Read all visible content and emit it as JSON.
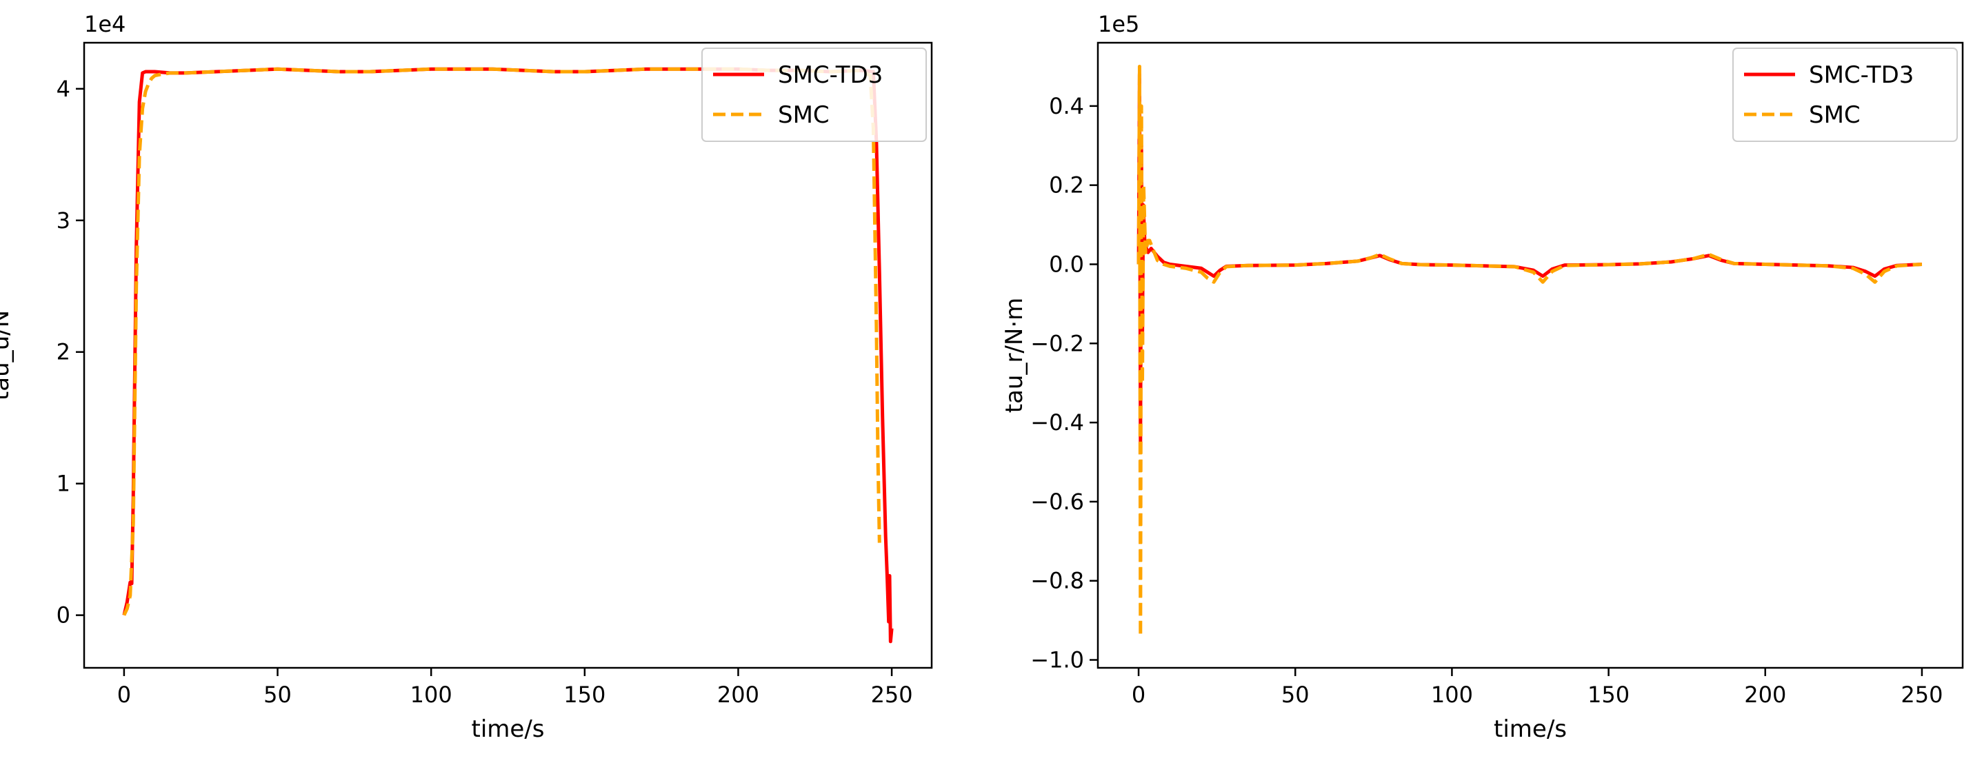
{
  "chart_data": [
    {
      "type": "line",
      "title": "",
      "xlabel": "time/s",
      "ylabel": "tau_u/N",
      "y_offset_label": "1e4",
      "xlim": [
        -13,
        263
      ],
      "ylim": [
        -0.4,
        4.35
      ],
      "xticks": [
        0,
        50,
        100,
        150,
        200,
        250
      ],
      "yticks": [
        0,
        1,
        2,
        3,
        4
      ],
      "xtick_labels": [
        "0",
        "50",
        "100",
        "150",
        "200",
        "250"
      ],
      "ytick_labels": [
        "0",
        "1",
        "2",
        "3",
        "4"
      ],
      "legend": "top-right",
      "series": [
        {
          "name": "SMC-TD3",
          "color": "#ff0000",
          "style": "solid",
          "x": [
            0,
            1,
            2,
            2.5,
            3,
            4,
            5,
            6,
            7,
            8,
            10,
            15,
            20,
            30,
            40,
            50,
            60,
            70,
            80,
            90,
            100,
            110,
            120,
            130,
            140,
            150,
            160,
            170,
            180,
            190,
            200,
            210,
            220,
            230,
            240,
            244,
            245,
            246,
            247,
            248,
            248.5,
            249,
            249.3,
            249.6,
            250
          ],
          "y": [
            0,
            0.1,
            0.25,
            0.24,
            0.9,
            2.8,
            3.9,
            4.12,
            4.13,
            4.13,
            4.13,
            4.12,
            4.12,
            4.13,
            4.14,
            4.15,
            4.14,
            4.13,
            4.13,
            4.14,
            4.15,
            4.15,
            4.15,
            4.14,
            4.13,
            4.13,
            4.14,
            4.15,
            4.15,
            4.15,
            4.15,
            4.14,
            4.14,
            4.13,
            4.14,
            4.13,
            3.6,
            2.6,
            1.5,
            0.6,
            0.3,
            -0.05,
            0.3,
            -0.2,
            -0.1
          ]
        },
        {
          "name": "SMC",
          "color": "#ffa500",
          "style": "dashed",
          "x": [
            0,
            1,
            2,
            3,
            4,
            5,
            6,
            7,
            8,
            9,
            10,
            12,
            15,
            20,
            30,
            40,
            50,
            60,
            70,
            80,
            90,
            100,
            110,
            120,
            130,
            140,
            150,
            160,
            170,
            180,
            190,
            200,
            210,
            220,
            230,
            240,
            243,
            244,
            245,
            245.5,
            246
          ],
          "y": [
            0,
            0.05,
            0.15,
            0.7,
            2.5,
            3.5,
            3.85,
            3.98,
            4.04,
            4.08,
            4.1,
            4.11,
            4.12,
            4.12,
            4.13,
            4.14,
            4.15,
            4.14,
            4.13,
            4.13,
            4.14,
            4.15,
            4.15,
            4.15,
            4.14,
            4.13,
            4.13,
            4.14,
            4.15,
            4.15,
            4.15,
            4.15,
            4.14,
            4.14,
            4.13,
            4.14,
            4.1,
            3.7,
            2.2,
            1.2,
            0.55
          ]
        }
      ]
    },
    {
      "type": "line",
      "title": "",
      "xlabel": "time/s",
      "ylabel": "tau_r/N·m",
      "y_offset_label": "1e5",
      "xlim": [
        -13,
        263
      ],
      "ylim": [
        -1.02,
        0.56
      ],
      "xticks": [
        0,
        50,
        100,
        150,
        200,
        250
      ],
      "yticks": [
        -1.0,
        -0.8,
        -0.6,
        -0.4,
        -0.2,
        0.0,
        0.2,
        0.4
      ],
      "xtick_labels": [
        "0",
        "50",
        "100",
        "150",
        "200",
        "250"
      ],
      "ytick_labels": [
        "−1.0",
        "−0.8",
        "−0.6",
        "−0.4",
        "−0.2",
        "0.0",
        "0.2",
        "0.4"
      ],
      "legend": "top-right",
      "series": [
        {
          "name": "SMC-TD3",
          "color": "#ff0000",
          "style": "solid",
          "x": [
            0,
            0.3,
            0.6,
            0.9,
            1.2,
            1.5,
            2,
            3,
            4,
            5,
            6,
            8,
            10,
            15,
            20,
            22,
            24,
            26,
            28,
            35,
            50,
            60,
            70,
            74,
            77,
            80,
            84,
            90,
            100,
            110,
            120,
            126,
            129,
            132,
            136,
            150,
            160,
            170,
            177,
            182,
            186,
            190,
            200,
            210,
            220,
            228,
            232,
            235,
            238,
            242,
            250
          ],
          "y": [
            0,
            0.48,
            -0.45,
            0.3,
            -0.2,
            0.15,
            0.05,
            0.03,
            0.04,
            0.03,
            0.02,
            0.005,
            0,
            -0.005,
            -0.01,
            -0.02,
            -0.03,
            -0.015,
            -0.005,
            -0.003,
            -0.002,
            0.002,
            0.008,
            0.016,
            0.022,
            0.012,
            0.002,
            -0.001,
            -0.002,
            -0.004,
            -0.006,
            -0.015,
            -0.03,
            -0.012,
            -0.002,
            -0.001,
            0.001,
            0.006,
            0.014,
            0.022,
            0.01,
            0.002,
            0,
            -0.002,
            -0.004,
            -0.008,
            -0.018,
            -0.03,
            -0.012,
            -0.003,
            0
          ]
        },
        {
          "name": "SMC",
          "color": "#ffa500",
          "style": "dashed",
          "x": [
            0,
            0.3,
            0.6,
            0.9,
            1.2,
            1.6,
            2.2,
            3,
            3.5,
            4,
            5,
            6,
            8,
            10,
            15,
            20,
            22,
            24,
            26,
            28,
            35,
            50,
            60,
            70,
            74,
            77,
            80,
            84,
            90,
            100,
            110,
            120,
            126,
            129,
            132,
            136,
            150,
            160,
            170,
            177,
            182,
            186,
            190,
            200,
            210,
            220,
            228,
            232,
            235,
            238,
            242,
            250
          ],
          "y": [
            0,
            0.5,
            -0.94,
            0.4,
            -0.3,
            0.2,
            0.03,
            0.06,
            0.06,
            0.05,
            0.03,
            0.01,
            0,
            -0.005,
            -0.01,
            -0.02,
            -0.035,
            -0.045,
            -0.02,
            -0.006,
            -0.003,
            -0.002,
            0.002,
            0.008,
            0.016,
            0.025,
            0.014,
            0.002,
            -0.001,
            -0.002,
            -0.004,
            -0.006,
            -0.02,
            -0.045,
            -0.018,
            -0.003,
            -0.001,
            0.001,
            0.006,
            0.014,
            0.025,
            0.012,
            0.002,
            0,
            -0.002,
            -0.004,
            -0.01,
            -0.025,
            -0.045,
            -0.018,
            -0.004,
            0
          ]
        }
      ]
    }
  ]
}
